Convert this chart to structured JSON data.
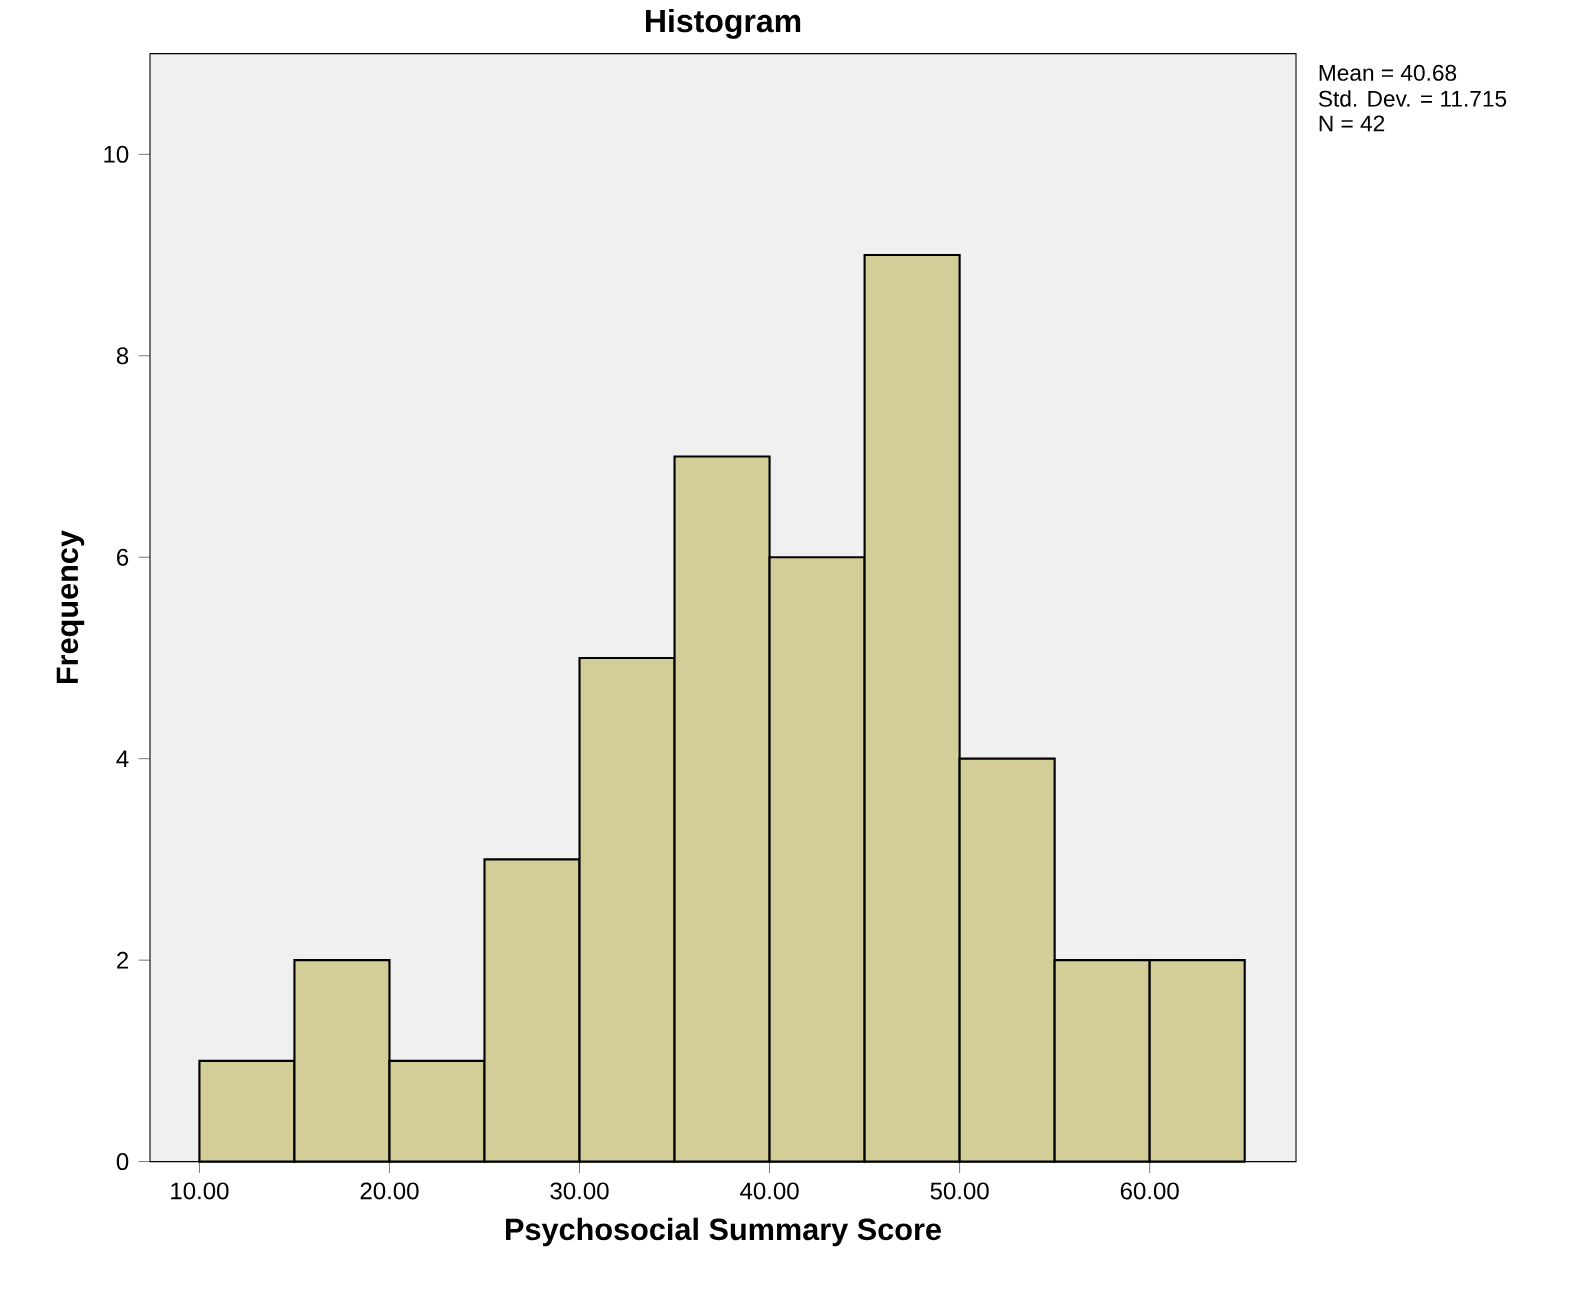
{
  "chart_data": {
    "type": "histogram",
    "title": "Histogram",
    "xlabel": "Psychosocial Summary Score",
    "ylabel": "Frequency",
    "bins": [
      10,
      15,
      20,
      25,
      30,
      35,
      40,
      45,
      50,
      55,
      60,
      65
    ],
    "values": [
      1,
      2,
      1,
      3,
      5,
      7,
      6,
      9,
      4,
      2,
      2
    ],
    "color": "#d3ce97",
    "xlim": [
      7.4,
      67.7
    ],
    "ylim": [
      0,
      11.0
    ],
    "xticks": [
      {
        "value": 10,
        "label": "10.00"
      },
      {
        "value": 20,
        "label": "20.00"
      },
      {
        "value": 30,
        "label": "30.00"
      },
      {
        "value": 40,
        "label": "40.00"
      },
      {
        "value": 50,
        "label": "50.00"
      },
      {
        "value": 60,
        "label": "60.00"
      }
    ],
    "yticks": [
      0,
      2,
      4,
      6,
      8,
      10
    ],
    "annotations": [
      "Mean = 40.68",
      "Std. Dev. = 11.715",
      "N = 42"
    ]
  }
}
